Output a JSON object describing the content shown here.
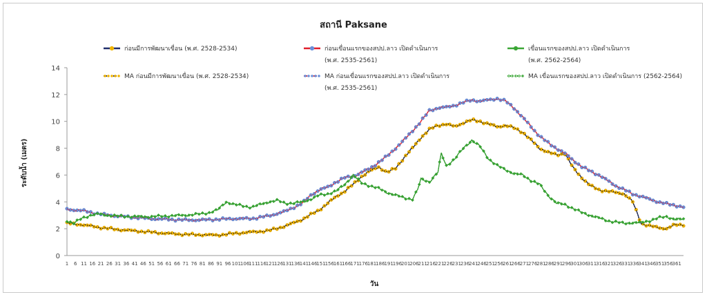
{
  "chart_data": {
    "type": "line",
    "title": "สถานี Paksane",
    "xlabel": "วัน",
    "ylabel": "ระดับน้ำ (เมตร)",
    "ylim": [
      0,
      14
    ],
    "y_ticks": [
      0,
      2,
      4,
      6,
      8,
      10,
      12,
      14
    ],
    "x_tick_labels": [
      "1",
      "6",
      "11",
      "16",
      "21",
      "26",
      "31",
      "36",
      "41",
      "46",
      "51",
      "56",
      "61",
      "66",
      "71",
      "76",
      "81",
      "86",
      "91",
      "96",
      "101",
      "106",
      "111",
      "116",
      "121",
      "126",
      "131",
      "136",
      "141",
      "146",
      "151",
      "156",
      "161",
      "166",
      "171",
      "176",
      "181",
      "186",
      "191",
      "196",
      "201",
      "206",
      "211",
      "216",
      "221",
      "226",
      "231",
      "236",
      "241",
      "246",
      "251",
      "256",
      "261",
      "266",
      "271",
      "276",
      "281",
      "286",
      "291",
      "296",
      "301",
      "306",
      "311",
      "316",
      "321",
      "326",
      "331",
      "336",
      "341",
      "346",
      "351",
      "356",
      "361"
    ],
    "xlim": [
      1,
      365
    ],
    "grid": false,
    "legend_position": "top",
    "series": [
      {
        "name": "ก่อนมีการพัฒนาเขื่อน (พ.ศ. 2528-2534)",
        "color": "#1f2d6b",
        "marker_color": "#f0b400",
        "style": "solid",
        "points": [
          [
            1,
            2.4
          ],
          [
            10,
            2.3
          ],
          [
            20,
            2.1
          ],
          [
            30,
            1.95
          ],
          [
            40,
            1.85
          ],
          [
            50,
            1.75
          ],
          [
            60,
            1.65
          ],
          [
            70,
            1.58
          ],
          [
            80,
            1.55
          ],
          [
            90,
            1.52
          ],
          [
            100,
            1.65
          ],
          [
            110,
            1.75
          ],
          [
            120,
            1.85
          ],
          [
            130,
            2.2
          ],
          [
            140,
            2.7
          ],
          [
            150,
            3.4
          ],
          [
            160,
            4.4
          ],
          [
            165,
            4.8
          ],
          [
            170,
            5.3
          ],
          [
            175,
            5.9
          ],
          [
            180,
            6.3
          ],
          [
            185,
            6.6
          ],
          [
            190,
            6.2
          ],
          [
            195,
            6.5
          ],
          [
            200,
            7.3
          ],
          [
            205,
            8.0
          ],
          [
            210,
            8.8
          ],
          [
            215,
            9.4
          ],
          [
            220,
            9.7
          ],
          [
            225,
            9.8
          ],
          [
            230,
            9.6
          ],
          [
            235,
            9.9
          ],
          [
            240,
            10.1
          ],
          [
            245,
            10.0
          ],
          [
            250,
            9.8
          ],
          [
            255,
            9.6
          ],
          [
            260,
            9.7
          ],
          [
            265,
            9.5
          ],
          [
            270,
            9.2
          ],
          [
            275,
            8.6
          ],
          [
            280,
            8.0
          ],
          [
            285,
            7.7
          ],
          [
            290,
            7.5
          ],
          [
            295,
            7.6
          ],
          [
            300,
            6.5
          ],
          [
            305,
            5.8
          ],
          [
            310,
            5.2
          ],
          [
            315,
            4.9
          ],
          [
            320,
            4.8
          ],
          [
            325,
            4.7
          ],
          [
            330,
            4.6
          ],
          [
            335,
            4.0
          ],
          [
            340,
            2.4
          ],
          [
            345,
            2.2
          ],
          [
            350,
            2.1
          ],
          [
            355,
            2.0
          ],
          [
            360,
            2.3
          ],
          [
            365,
            2.3
          ]
        ]
      },
      {
        "name": "ก่อนเขื่อนแรกของสปป.ลาว เปิดดำเนินการ (พ.ศ. 2535-2561)",
        "color": "#e01e2a",
        "marker_color": "#6a8fd8",
        "style": "solid",
        "points": [
          [
            1,
            3.45
          ],
          [
            10,
            3.35
          ],
          [
            20,
            3.1
          ],
          [
            30,
            2.95
          ],
          [
            40,
            2.85
          ],
          [
            50,
            2.75
          ],
          [
            60,
            2.7
          ],
          [
            70,
            2.65
          ],
          [
            80,
            2.65
          ],
          [
            90,
            2.7
          ],
          [
            100,
            2.75
          ],
          [
            110,
            2.75
          ],
          [
            120,
            2.95
          ],
          [
            130,
            3.3
          ],
          [
            140,
            3.9
          ],
          [
            145,
            4.5
          ],
          [
            150,
            4.9
          ],
          [
            155,
            5.1
          ],
          [
            160,
            5.5
          ],
          [
            165,
            5.8
          ],
          [
            170,
            5.9
          ],
          [
            175,
            6.2
          ],
          [
            180,
            6.5
          ],
          [
            190,
            7.4
          ],
          [
            200,
            8.6
          ],
          [
            205,
            9.3
          ],
          [
            210,
            10.0
          ],
          [
            215,
            10.8
          ],
          [
            220,
            11.0
          ],
          [
            225,
            11.05
          ],
          [
            230,
            11.2
          ],
          [
            235,
            11.4
          ],
          [
            240,
            11.6
          ],
          [
            245,
            11.5
          ],
          [
            250,
            11.6
          ],
          [
            255,
            11.7
          ],
          [
            260,
            11.5
          ],
          [
            265,
            11.0
          ],
          [
            270,
            10.3
          ],
          [
            275,
            9.6
          ],
          [
            280,
            8.9
          ],
          [
            285,
            8.4
          ],
          [
            290,
            8.0
          ],
          [
            295,
            7.6
          ],
          [
            300,
            7.1
          ],
          [
            305,
            6.6
          ],
          [
            310,
            6.3
          ],
          [
            315,
            6.0
          ],
          [
            320,
            5.6
          ],
          [
            325,
            5.2
          ],
          [
            330,
            4.9
          ],
          [
            335,
            4.6
          ],
          [
            340,
            4.4
          ],
          [
            345,
            4.2
          ],
          [
            350,
            4.0
          ],
          [
            355,
            3.85
          ],
          [
            360,
            3.75
          ],
          [
            365,
            3.6
          ]
        ]
      },
      {
        "name": "เขื่อนแรกของสปป.ลาว เปิดดำเนินการ (พ.ศ. 2562-2564)",
        "color": "#3aa635",
        "marker_color": "#3aa635",
        "style": "solid",
        "points": [
          [
            1,
            2.6
          ],
          [
            5,
            2.4
          ],
          [
            10,
            2.8
          ],
          [
            15,
            3.0
          ],
          [
            20,
            3.1
          ],
          [
            25,
            3.0
          ],
          [
            30,
            2.95
          ],
          [
            40,
            2.9
          ],
          [
            50,
            2.9
          ],
          [
            60,
            2.95
          ],
          [
            70,
            3.0
          ],
          [
            80,
            3.1
          ],
          [
            85,
            3.2
          ],
          [
            90,
            3.4
          ],
          [
            95,
            4.0
          ],
          [
            100,
            3.8
          ],
          [
            105,
            3.7
          ],
          [
            110,
            3.6
          ],
          [
            115,
            3.8
          ],
          [
            120,
            4.0
          ],
          [
            125,
            4.1
          ],
          [
            130,
            3.9
          ],
          [
            135,
            3.9
          ],
          [
            140,
            4.0
          ],
          [
            145,
            4.2
          ],
          [
            150,
            4.5
          ],
          [
            155,
            4.6
          ],
          [
            160,
            4.8
          ],
          [
            165,
            5.3
          ],
          [
            170,
            6.0
          ],
          [
            175,
            5.4
          ],
          [
            180,
            5.2
          ],
          [
            185,
            5.0
          ],
          [
            190,
            4.7
          ],
          [
            195,
            4.5
          ],
          [
            200,
            4.3
          ],
          [
            205,
            4.2
          ],
          [
            208,
            4.9
          ],
          [
            210,
            5.7
          ],
          [
            215,
            5.5
          ],
          [
            220,
            6.2
          ],
          [
            222,
            7.6
          ],
          [
            225,
            6.7
          ],
          [
            230,
            7.2
          ],
          [
            235,
            8.0
          ],
          [
            240,
            8.6
          ],
          [
            245,
            8.1
          ],
          [
            250,
            7.2
          ],
          [
            255,
            6.7
          ],
          [
            260,
            6.4
          ],
          [
            265,
            6.1
          ],
          [
            270,
            6.0
          ],
          [
            275,
            5.6
          ],
          [
            280,
            5.3
          ],
          [
            285,
            4.5
          ],
          [
            290,
            3.9
          ],
          [
            295,
            3.8
          ],
          [
            300,
            3.5
          ],
          [
            305,
            3.2
          ],
          [
            310,
            3.0
          ],
          [
            315,
            2.8
          ],
          [
            320,
            2.6
          ],
          [
            325,
            2.5
          ],
          [
            330,
            2.4
          ],
          [
            335,
            2.45
          ],
          [
            340,
            2.45
          ],
          [
            345,
            2.6
          ],
          [
            350,
            2.8
          ],
          [
            355,
            2.9
          ],
          [
            360,
            2.7
          ],
          [
            365,
            2.7
          ]
        ]
      }
    ]
  },
  "legend": [
    {
      "label": "ก่อนมีการพัฒนาเขื่อน (พ.ศ. 2528-2534)",
      "line1": "ก่อนมีการพัฒนาเขื่อน (พ.ศ. 2528-2534)",
      "line2": "",
      "color": "#1f2d6b",
      "marker": "#f0b400",
      "dotted": false
    },
    {
      "label": "ก่อนเขื่อนแรกของสปป.ลาว เปิดดำเนินการ",
      "line1": "ก่อนเขื่อนแรกของสปป.ลาว เปิดดำเนินการ",
      "line2": "(พ.ศ. 2535-2561)",
      "color": "#e01e2a",
      "marker": "#6a8fd8",
      "dotted": false
    },
    {
      "label": "เขื่อนแรกของสปป.ลาว เปิดดำเนินการ",
      "line1": "เขื่อนแรกของสปป.ลาว เปิดดำเนินการ",
      "line2": "(พ.ศ. 2562-2564)",
      "color": "#3aa635",
      "marker": "#3aa635",
      "dotted": false
    },
    {
      "label": "MA ก่อนมีการพัฒนาเขื่อน (พ.ศ. 2528-2534)",
      "line1": "MA ก่อนมีการพัฒนาเขื่อน (พ.ศ. 2528-2534)",
      "line2": "",
      "color": "#1f2d6b",
      "marker": "#f0b400",
      "dotted": true
    },
    {
      "label": "MA ก่อนเขื่อนแรกของสปป.ลาว เปิดดำเนินการ",
      "line1": "MA ก่อนเขื่อนแรกของสปป.ลาว เปิดดำเนินการ",
      "line2": "(พ.ศ. 2535-2561)",
      "color": "#e01e2a",
      "marker": "#6a8fd8",
      "dotted": true
    },
    {
      "label": "MA เขื่อนแรกของสปป.ลาว เปิดดำเนินการ (2562-2564)",
      "line1": "MA เขื่อนแรกของสปป.ลาว เปิดดำเนินการ (2562-2564)",
      "line2": "",
      "color": "#3aa635",
      "marker": "#3aa635",
      "dotted": true
    }
  ]
}
